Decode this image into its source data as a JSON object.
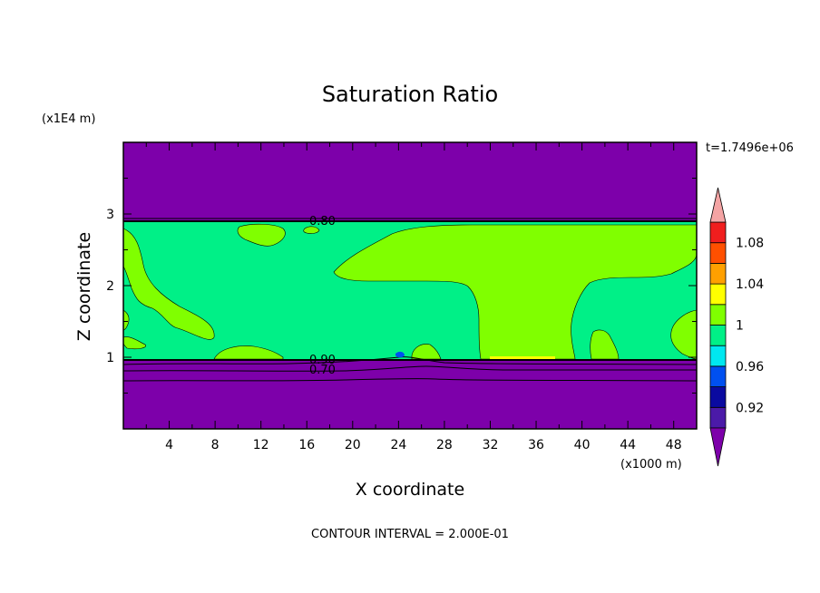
{
  "chart_data": {
    "type": "heatmap",
    "title": "Saturation Ratio",
    "xlabel": "X coordinate",
    "ylabel": "Z coordinate",
    "x_unit": "(x1000 m)",
    "y_unit": "(x1E4 m)",
    "time_label": "t=1.7496e+06",
    "footer": "CONTOUR INTERVAL = 2.000E-01",
    "xlim": [
      0,
      50
    ],
    "ylim": [
      0,
      4
    ],
    "x_ticks": [
      "4",
      "8",
      "12",
      "16",
      "20",
      "24",
      "28",
      "32",
      "36",
      "40",
      "44",
      "48"
    ],
    "x_tick_values": [
      4,
      8,
      12,
      16,
      20,
      24,
      28,
      32,
      36,
      40,
      44,
      48
    ],
    "y_ticks": [
      "1",
      "2",
      "3"
    ],
    "y_tick_values": [
      1,
      2,
      3
    ],
    "colorbar": {
      "labels": [
        "0.92",
        "0.96",
        "1",
        "1.04",
        "1.08"
      ],
      "label_values": [
        0.92,
        0.96,
        1.0,
        1.04,
        1.08
      ],
      "bounds": [
        0.9,
        0.92,
        0.94,
        0.96,
        0.98,
        1.0,
        1.02,
        1.04,
        1.06,
        1.08,
        1.1
      ],
      "colors": [
        "#4b1aa8",
        "#0a0aa0",
        "#0050f0",
        "#00e8f0",
        "#00f087",
        "#80ff00",
        "#ffff00",
        "#ffa000",
        "#ff5000",
        "#f01e1e"
      ],
      "under_color": "#7d00aa",
      "over_color": "#f4a4a4"
    },
    "contour_labels": [
      {
        "text": "0.80",
        "x": 17.8,
        "z": 2.9
      },
      {
        "text": "0.90",
        "x": 17.8,
        "z": 0.97
      },
      {
        "text": "0.70",
        "x": 17.8,
        "z": 0.84
      }
    ],
    "regions": {
      "upper_layer_value_range": "< 0.9",
      "cloud_layer_base_km": 9.7,
      "cloud_layer_top_km": 29,
      "lower_layer_value_range": "< 0.9"
    }
  }
}
